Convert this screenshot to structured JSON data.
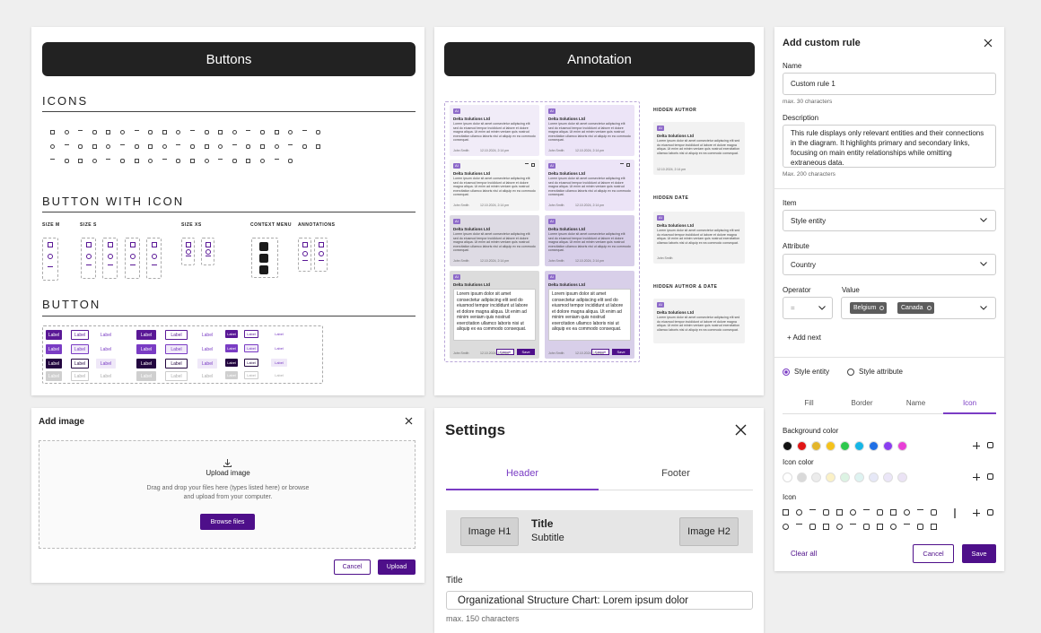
{
  "buttons_panel": {
    "title": "Buttons",
    "icons_heading": "ICONS",
    "button_with_icon_heading": "BUTTON WITH ICON",
    "groups": [
      "SIZE M",
      "SIZE S",
      "SIZE XS",
      "CONTEXT MENU",
      "ANNOTATIONS"
    ],
    "button_heading": "BUTTON",
    "button_label": "Label"
  },
  "annotation_panel": {
    "title": "Annotation",
    "badge": "AI",
    "company": "Delta Solutions Ltd",
    "body": "Lorem ipsum dolor sit amet consectetur adipiscing elit sed do eiusmod tempor incididunt ut labore et dolore magna aliqua. Ut enim ad minim veniam quis nostrud exercitation ullamco laboris nisi ut aliquip ex ea commodo consequat.",
    "author": "John Smith",
    "date": "12.10.2024, 2:14 pm",
    "cancel": "Cancel",
    "save": "Save",
    "variants": [
      "HIDDEN AUTHOR",
      "HIDDEN DATE",
      "HIDDEN AUTHOR & DATE"
    ]
  },
  "custom_rule": {
    "title": "Add custom rule",
    "name_label": "Name",
    "name_value": "Custom rule 1",
    "name_hint": "max. 30 characters",
    "description_label": "Description",
    "description_value": "This rule displays only relevant entities and their connections in the diagram. It highlights primary and secondary links, focusing on main entity relationships while omitting extraneous data.",
    "description_hint": "Max. 200 characters",
    "item_label": "Item",
    "item_value": "Style entity",
    "attribute_label": "Attribute",
    "attribute_value": "Country",
    "operator_label": "Operator",
    "operator_value": "=",
    "value_label": "Value",
    "value_chips": [
      "Belgium",
      "Canada"
    ],
    "add_next": "+ Add next",
    "radio_options": [
      "Style entity",
      "Style attribute"
    ],
    "tabs": [
      "Fill",
      "Border",
      "Name",
      "Icon"
    ],
    "background_color_label": "Background color",
    "background_colors": [
      "#111111",
      "#e01515",
      "#e3b52a",
      "#f5c21b",
      "#2dc84d",
      "#16b6e6",
      "#1f6fe5",
      "#8a3ef0",
      "#e83fd6"
    ],
    "icon_color_label": "Icon color",
    "icon_colors": [
      "#ffffff",
      "#d9d9d9",
      "#ececec",
      "#fbf1c6",
      "#dcf3e3",
      "#def3f1",
      "#e6e8f7",
      "#ebe6f8",
      "#ebe3f5"
    ],
    "icon_label": "Icon",
    "clear_all": "Clear all",
    "cancel": "Cancel",
    "save": "Save"
  },
  "add_image": {
    "title": "Add image",
    "upload_title": "Upload image",
    "upload_text": "Drag and drop your files here (types listed here) or browse and upload from your computer.",
    "browse": "Browse files",
    "cancel": "Cancel",
    "upload": "Upload"
  },
  "settings": {
    "title": "Settings",
    "tabs": [
      "Header",
      "Footer"
    ],
    "image_left": "Image H1",
    "preview_title": "Title",
    "preview_subtitle": "Subtitle",
    "image_right": "Image H2",
    "field_label": "Title",
    "field_value": "Organizational Structure Chart: Lorem ipsum dolor",
    "field_hint": "max. 150 characters"
  }
}
